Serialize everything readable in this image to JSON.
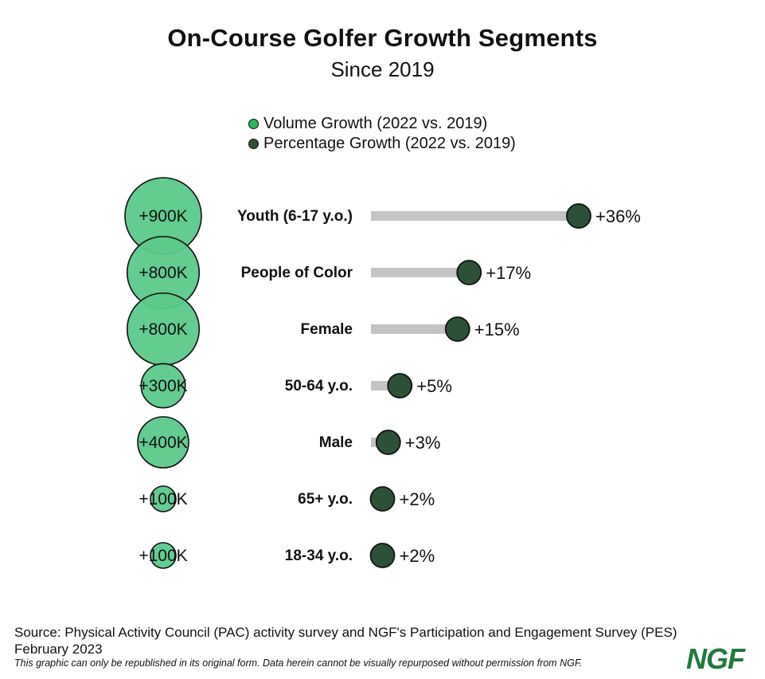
{
  "colors": {
    "volume": "#5bc98a",
    "volume_legend": "#2cb45a",
    "percent": "#2b5237",
    "track": "#c4c4c4",
    "logo": "#1f7a3c"
  },
  "chart_data": {
    "type": "bubble-lollipop",
    "title": "On-Course Golfer Growth Segments",
    "subtitle": "Since 2019",
    "legend": [
      {
        "label": "Volume Growth (2022 vs. 2019)",
        "color": "#2cb45a"
      },
      {
        "label": "Percentage Growth (2022 vs. 2019)",
        "color": "#2b5237"
      }
    ],
    "segments": [
      {
        "label": "Youth (6-17 y.o.)",
        "volume": 900,
        "volume_label": "+900K",
        "percent": 36,
        "percent_label": "+36%"
      },
      {
        "label": "People of Color",
        "volume": 800,
        "volume_label": "+800K",
        "percent": 17,
        "percent_label": "+17%"
      },
      {
        "label": "Female",
        "volume": 800,
        "volume_label": "+800K",
        "percent": 15,
        "percent_label": "+15%"
      },
      {
        "label": "50-64 y.o.",
        "volume": 300,
        "volume_label": "+300K",
        "percent": 5,
        "percent_label": "+5%"
      },
      {
        "label": "Male",
        "volume": 400,
        "volume_label": "+400K",
        "percent": 3,
        "percent_label": "+3%"
      },
      {
        "label": "65+ y.o.",
        "volume": 100,
        "volume_label": "+100K",
        "percent": 2,
        "percent_label": "+2%"
      },
      {
        "label": "18-34 y.o.",
        "volume": 100,
        "volume_label": "+100K",
        "percent": 2,
        "percent_label": "+2%"
      }
    ],
    "volume_unit": "thousands of golfers",
    "percent_range": [
      0,
      36
    ]
  },
  "footer": {
    "source": "Source: Physical Activity Council (PAC) activity survey and NGF's Participation and Engagement Survey (PES)",
    "date": "February 2023",
    "disclaimer": "This graphic can only be republished in its original form. Data herein cannot be visually repurposed without permission from NGF.",
    "logo": "NGF"
  }
}
